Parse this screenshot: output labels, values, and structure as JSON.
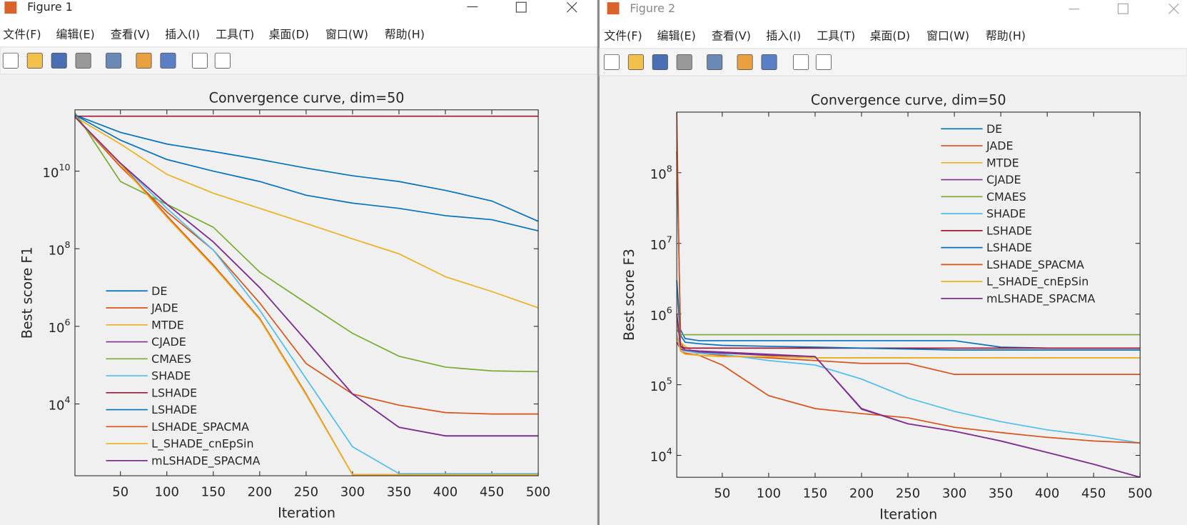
{
  "windows": [
    {
      "title": "Figure 1",
      "menu": [
        "文件(F)",
        "编辑(E)",
        "查看(V)",
        "插入(I)",
        "工具(T)",
        "桌面(D)",
        "窗口(W)",
        "帮助(H)"
      ]
    },
    {
      "title": "Figure 2",
      "menu": [
        "文件(F)",
        "编辑(E)",
        "查看(V)",
        "插入(I)",
        "工具(T)",
        "桌面(D)",
        "窗口(W)",
        "帮助(H)"
      ]
    }
  ],
  "chart_data": [
    {
      "type": "line",
      "title": "Convergence curve, dim=50",
      "xlabel": "Iteration",
      "ylabel": "Best score F1",
      "log_y": true,
      "grid": false,
      "legend": "lower-left",
      "x": [
        1,
        50,
        100,
        150,
        200,
        250,
        300,
        350,
        400,
        450,
        500
      ],
      "xlim": [
        1,
        500
      ],
      "xticks": [
        50,
        100,
        150,
        200,
        250,
        300,
        350,
        400,
        450,
        500
      ],
      "ylim": [
        141,
        380000000000
      ],
      "yticks": [
        {
          "value": 10000,
          "label": "10^4"
        },
        {
          "value": 1000000,
          "label": "10^6"
        },
        {
          "value": 100000000,
          "label": "10^8"
        },
        {
          "value": 10000000000,
          "label": "10^10"
        }
      ],
      "series": [
        {
          "name": "DE",
          "color": "#0072BD",
          "values": [
            280000000000,
            100000000000,
            50000000000,
            32000000000,
            20000000000,
            12000000000,
            7600000000,
            5400000000,
            3200000000,
            1700000000,
            510000000
          ]
        },
        {
          "name": "JADE",
          "color": "#D95319",
          "values": [
            250000000000,
            13000000000,
            890000000,
            93000000,
            4000000,
            110000,
            18000,
            9300,
            6000,
            5500,
            5500
          ]
        },
        {
          "name": "MTDE",
          "color": "#EDB120",
          "values": [
            250000000000,
            50000000000,
            8300000000,
            2700000000,
            1100000000,
            450000000,
            180000000,
            74000000,
            19000000,
            7900000,
            3000000
          ]
        },
        {
          "name": "CJADE",
          "color": "#7E2F8E",
          "values": [
            250000000000,
            16000000000,
            1400000000,
            150000000,
            10000000,
            430000,
            18000,
            2500,
            1500,
            1500,
            1500
          ]
        },
        {
          "name": "CMAES",
          "color": "#77AC30",
          "values": [
            320000000000,
            5400000000,
            1400000000,
            360000000,
            25000000,
            4000000,
            660000,
            170000,
            89000,
            71000,
            68000
          ]
        },
        {
          "name": "SHADE",
          "color": "#4DBEEE",
          "values": [
            250000000000,
            16000000000,
            1100000000,
            93000000,
            2600000,
            45000,
            790,
            160,
            160,
            160,
            160
          ]
        },
        {
          "name": "LSHADE",
          "color": "#A2142F",
          "values": [
            260000000000,
            260000000000,
            260000000000,
            260000000000,
            260000000000,
            260000000000,
            260000000000,
            260000000000,
            260000000000,
            260000000000,
            260000000000
          ]
        },
        {
          "name": "LSHADE",
          "color": "#0072BD",
          "values": [
            280000000000,
            63000000000,
            20000000000,
            10000000000,
            5400000000,
            2400000000,
            1500000000,
            1100000000,
            710000000,
            560000000,
            290000000
          ]
        },
        {
          "name": "LSHADE_SPACMA",
          "color": "#D95319",
          "values": [
            250000000000,
            16000000000,
            710000000,
            38000000,
            1600000,
            18000,
            150,
            150,
            150,
            150,
            150
          ]
        },
        {
          "name": "L_SHADE_cnEpSin",
          "color": "#EDB120",
          "values": [
            250000000000,
            15000000000,
            650000000,
            35000000,
            1500000,
            17000,
            150,
            150,
            150,
            150,
            150
          ]
        },
        {
          "name": "mLSHADE_SPACMA",
          "color": "#7E2F8E",
          "values": [
            250000000000,
            16000000000,
            1400000000,
            150000000,
            10000000,
            430000,
            18000,
            2500,
            1500,
            1500,
            1500
          ]
        }
      ]
    },
    {
      "type": "line",
      "title": "Convergence curve, dim=50",
      "xlabel": "Iteration",
      "ylabel": "Best score F3",
      "log_y": true,
      "grid": false,
      "legend": "upper-right",
      "x": [
        1,
        5,
        10,
        25,
        50,
        100,
        150,
        200,
        250,
        300,
        350,
        400,
        450,
        500
      ],
      "xlim": [
        1,
        500
      ],
      "xticks": [
        50,
        100,
        150,
        200,
        250,
        300,
        350,
        400,
        450,
        500
      ],
      "ylim": [
        4900,
        720000000
      ],
      "yticks": [
        {
          "value": 10000,
          "label": "10^4"
        },
        {
          "value": 100000,
          "label": "10^5"
        },
        {
          "value": 1000000,
          "label": "10^6"
        },
        {
          "value": 10000000,
          "label": "10^7"
        },
        {
          "value": 100000000,
          "label": "10^8"
        }
      ],
      "series": [
        {
          "name": "DE",
          "color": "#0072BD",
          "values": [
            200000000,
            600000,
            450000,
            420000,
            420000,
            420000,
            420000,
            420000,
            420000,
            420000,
            340000,
            330000,
            330000,
            330000
          ]
        },
        {
          "name": "JADE",
          "color": "#D95319",
          "values": [
            3000000,
            400000,
            300000,
            280000,
            260000,
            240000,
            220000,
            200000,
            200000,
            140000,
            140000,
            140000,
            140000,
            140000
          ]
        },
        {
          "name": "MTDE",
          "color": "#EDB120",
          "values": [
            800000,
            400000,
            350000,
            260000,
            250000,
            250000,
            240000,
            240000,
            240000,
            240000,
            240000,
            240000,
            240000,
            240000
          ]
        },
        {
          "name": "CJADE",
          "color": "#7E2F8E",
          "values": [
            400000,
            320000,
            300000,
            290000,
            280000,
            260000,
            250000,
            45000,
            28000,
            22000,
            16000,
            11000,
            7500,
            4900
          ]
        },
        {
          "name": "CMAES",
          "color": "#77AC30",
          "values": [
            600000,
            510000,
            510000,
            510000,
            510000,
            510000,
            510000,
            510000,
            510000,
            510000,
            510000,
            510000,
            510000,
            510000
          ]
        },
        {
          "name": "SHADE",
          "color": "#4DBEEE",
          "values": [
            500000,
            350000,
            300000,
            280000,
            270000,
            220000,
            190000,
            120000,
            65000,
            42000,
            30000,
            23000,
            19000,
            15000
          ]
        },
        {
          "name": "LSHADE",
          "color": "#A2142F",
          "values": [
            1000000,
            350000,
            330000,
            330000,
            330000,
            330000,
            330000,
            330000,
            330000,
            330000,
            330000,
            330000,
            330000,
            330000
          ]
        },
        {
          "name": "LSHADE",
          "color": "#0072BD",
          "values": [
            3000000,
            500000,
            400000,
            380000,
            360000,
            350000,
            340000,
            330000,
            320000,
            310000,
            310000,
            310000,
            310000,
            310000
          ]
        },
        {
          "name": "LSHADE_SPACMA",
          "color": "#D95319",
          "values": [
            720000000,
            300000,
            280000,
            260000,
            190000,
            70000,
            46000,
            39000,
            34000,
            25000,
            21000,
            18000,
            16000,
            15000
          ]
        },
        {
          "name": "L_SHADE_cnEpSin",
          "color": "#EDB120",
          "values": [
            500000,
            300000,
            270000,
            260000,
            250000,
            250000,
            240000,
            240000,
            240000,
            240000,
            240000,
            240000,
            240000,
            240000
          ]
        },
        {
          "name": "mLSHADE_SPACMA",
          "color": "#7E2F8E",
          "values": [
            1000000,
            350000,
            310000,
            300000,
            290000,
            270000,
            250000,
            46000,
            28000,
            22000,
            16000,
            11000,
            7500,
            4900
          ]
        }
      ]
    }
  ]
}
